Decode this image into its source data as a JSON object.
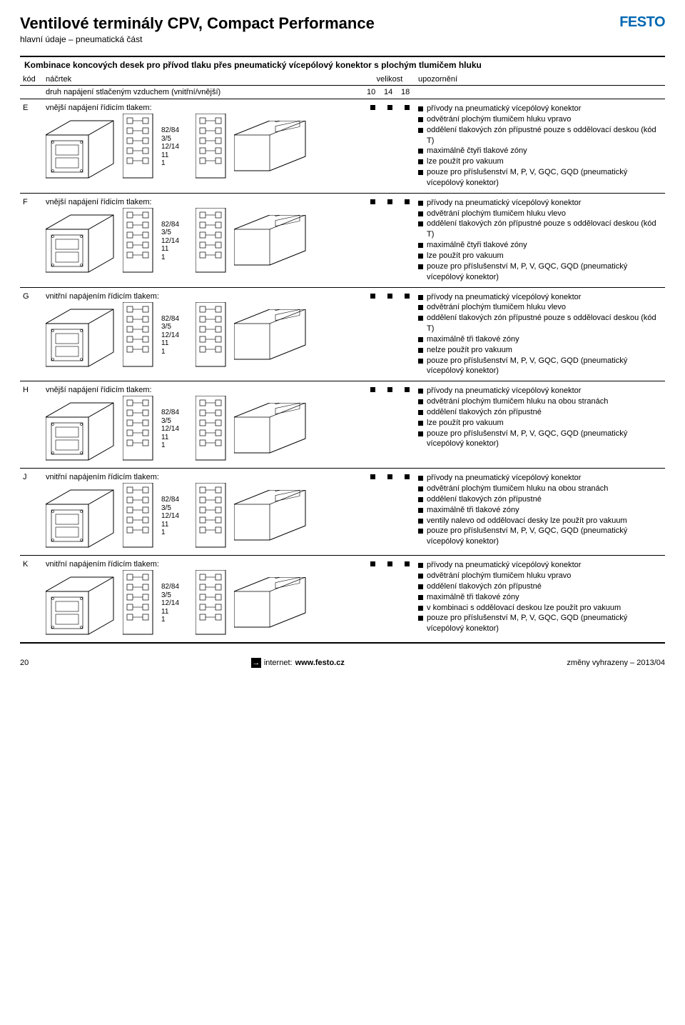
{
  "logo": "FESTO",
  "title": "Ventilové terminály CPV, Compact Performance",
  "subtitle": "hlavní údaje – pneumatická část",
  "section_header": "Kombinace koncových desek pro přívod tlaku přes pneumatický vícepólový konektor s plochým tlumičem hluku",
  "head": {
    "kod": "kód",
    "nacrtek": "náčrtek",
    "velikost": "velikost",
    "upozorneni": "upozornění",
    "druh": "druh napájení stlačeným vzduchem (vnitřní/vnější)",
    "v10": "10",
    "v14": "14",
    "v18": "18"
  },
  "labels": [
    "82/84",
    "3/5",
    "12/14",
    "11",
    "1"
  ],
  "rows": [
    {
      "kod": "E",
      "nac_label": "vnější napájení řídicím tlakem:",
      "bullets": [
        "přívody na pneumatický vícepólový konektor",
        "odvětrání plochým tlumičem hluku vpravo",
        "oddělení tlakových zón přípustné pouze s oddělovací deskou (kód T)",
        "maximálně čtyři tlakové zóny",
        "lze použít pro vakuum",
        "pouze pro příslušenství M, P, V, GQC, GQD (pneumatický vícepólový konektor)"
      ]
    },
    {
      "kod": "F",
      "nac_label": "vnější napájení řídicím tlakem:",
      "bullets": [
        "přívody na pneumatický vícepólový konektor",
        "odvětrání plochým tlumičem hluku vlevo",
        "oddělení tlakových zón přípustné pouze s oddělovací deskou (kód T)",
        "maximálně čtyři tlakové zóny",
        "lze použít pro vakuum",
        "pouze pro příslušenství M, P, V, GQC, GQD (pneumatický vícepólový konektor)"
      ]
    },
    {
      "kod": "G",
      "nac_label": "vnitřní napájením řídicím tlakem:",
      "bullets": [
        "přívody na pneumatický vícepólový konektor",
        "odvětrání plochým tlumičem hluku vlevo",
        "oddělení tlakových zón přípustné pouze s oddělovací deskou (kód T)",
        "maximálně tři tlakové zóny",
        "nelze použít pro vakuum",
        "pouze pro příslušenství M, P, V, GQC, GQD (pneumatický vícepólový konektor)"
      ]
    },
    {
      "kod": "H",
      "nac_label": "vnější napájení řídicím tlakem:",
      "bullets": [
        "přívody na pneumatický vícepólový konektor",
        "odvětrání plochým tlumičem hluku na obou stranách",
        "oddělení tlakových zón přípustné",
        "lze použít pro vakuum",
        "pouze pro příslušenství M, P, V, GQC, GQD (pneumatický vícepólový konektor)"
      ]
    },
    {
      "kod": "J",
      "nac_label": "vnitřní napájením řídicím tlakem:",
      "bullets": [
        "přívody na pneumatický vícepólový konektor",
        "odvětrání plochým tlumičem hluku na obou stranách",
        "oddělení tlakových zón přípustné",
        "maximálně tři tlakové zóny",
        "ventily nalevo od oddělovací desky lze použít pro vakuum",
        "pouze pro příslušenství M, P, V, GQC, GQD (pneumatický vícepólový konektor)"
      ]
    },
    {
      "kod": "K",
      "nac_label": "vnitřní napájením řídicím tlakem:",
      "bullets": [
        "přívody na pneumatický vícepólový konektor",
        "odvětrání plochým tlumičem hluku vpravo",
        "oddělení tlakových zón přípustné",
        "maximálně tři tlakové zóny",
        "v kombinaci s oddělovací deskou lze použít pro vakuum",
        "pouze pro příslušenství M, P, V, GQC, GQD (pneumatický vícepólový konektor)"
      ]
    }
  ],
  "footer": {
    "page": "20",
    "internet_label": "internet:",
    "internet_url": "www.festo.cz",
    "right": "změny vyhrazeny – 2013/04"
  },
  "colors": {
    "brand_blue": "#0067b1",
    "black": "#000000",
    "white": "#ffffff"
  }
}
